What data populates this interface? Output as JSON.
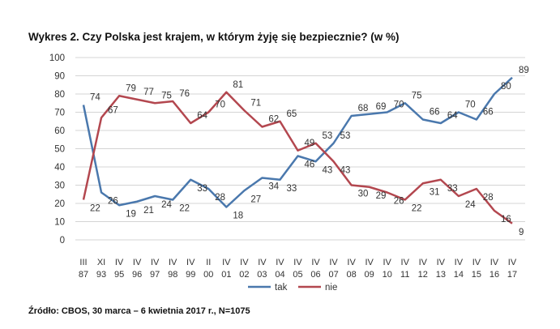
{
  "chart_data": {
    "type": "line",
    "title": "Wykres 2. Czy Polska jest krajem, w którym żyję się bezpiecznie? (w %)",
    "source": "Źródło: CBOS, 30 marca – 6 kwietnia 2017 r., N=1075",
    "categories": [
      [
        "III",
        "87"
      ],
      [
        "XI",
        "93"
      ],
      [
        "IV",
        "95"
      ],
      [
        "IV",
        "96"
      ],
      [
        "IV",
        "97"
      ],
      [
        "IV",
        "98"
      ],
      [
        "IV",
        "99"
      ],
      [
        "II",
        "00"
      ],
      [
        "IV",
        "01"
      ],
      [
        "IV",
        "02"
      ],
      [
        "IV",
        "03"
      ],
      [
        "IV",
        "04"
      ],
      [
        "IV",
        "05"
      ],
      [
        "IV",
        "06"
      ],
      [
        "IV",
        "07"
      ],
      [
        "IV",
        "08"
      ],
      [
        "IV",
        "09"
      ],
      [
        "IV",
        "10"
      ],
      [
        "IV",
        "11"
      ],
      [
        "IV",
        "12"
      ],
      [
        "IV",
        "13"
      ],
      [
        "IV",
        "14"
      ],
      [
        "IV",
        "15"
      ],
      [
        "IV",
        "16"
      ],
      [
        "IV",
        "17"
      ]
    ],
    "series": [
      {
        "name": "tak",
        "color": "#4a78ad",
        "values": [
          74,
          26,
          19,
          21,
          24,
          22,
          33,
          28,
          18,
          27,
          34,
          33,
          46,
          43,
          53,
          68,
          69,
          70,
          75,
          66,
          64,
          70,
          66,
          80,
          89
        ]
      },
      {
        "name": "nie",
        "color": "#b3474f",
        "values": [
          22,
          67,
          79,
          77,
          75,
          76,
          64,
          70,
          81,
          71,
          62,
          65,
          49,
          53,
          43,
          30,
          29,
          26,
          22,
          31,
          33,
          24,
          28,
          16,
          9
        ]
      }
    ],
    "ylim": [
      0,
      100
    ],
    "yticks": [
      0,
      10,
      20,
      30,
      40,
      50,
      60,
      70,
      80,
      90,
      100
    ],
    "grid": true,
    "legend": "bottom"
  }
}
